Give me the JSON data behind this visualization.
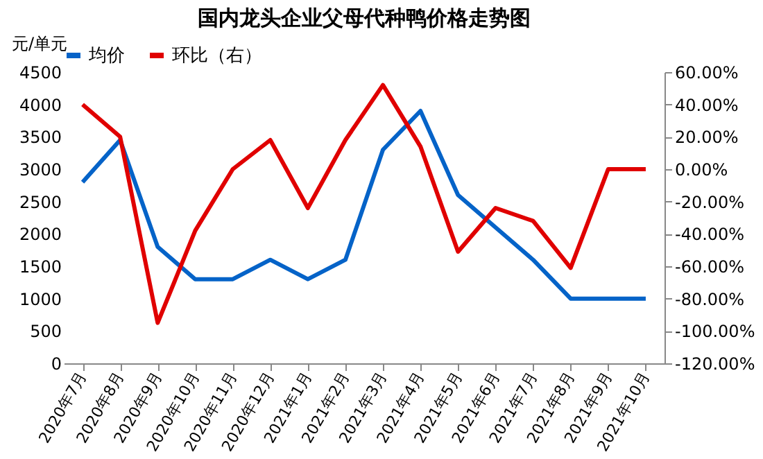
{
  "chart_data": {
    "type": "line",
    "title": "国内龙头企业父母代种鸭价格走势图",
    "ylabel": "元/单元",
    "categories": [
      "2020年7月",
      "2020年8月",
      "2020年9月",
      "2020年10月",
      "2020年11月",
      "2020年12月",
      "2021年1月",
      "2021年2月",
      "2021年3月",
      "2021年4月",
      "2021年5月",
      "2021年6月",
      "2021年7月",
      "2021年8月",
      "2021年9月",
      "2021年10月"
    ],
    "series": [
      {
        "name": "均价",
        "color": "#0563c8",
        "values": [
          2800,
          3450,
          1800,
          1300,
          1300,
          1600,
          1300,
          1600,
          3300,
          3900,
          2600,
          2100,
          1600,
          1000,
          1000,
          1000
        ]
      },
      {
        "name": "环比（右）",
        "color": "#e00000",
        "axis": "y2",
        "values": [
          40,
          20,
          -95,
          -38,
          0,
          18,
          -24,
          18,
          52,
          14,
          -51,
          -24,
          -32,
          -61,
          0,
          0
        ]
      }
    ],
    "ylim": [
      0,
      4500
    ],
    "yticks": [
      0,
      500,
      1000,
      1500,
      2000,
      2500,
      3000,
      3500,
      4000,
      4500
    ],
    "y2lim": [
      -120,
      60
    ],
    "y2ticks": [
      {
        "value": -120,
        "label": "-120.00%"
      },
      {
        "value": -100,
        "label": "-100.00%"
      },
      {
        "value": -80,
        "label": "-80.00%"
      },
      {
        "value": -60,
        "label": "-60.00%"
      },
      {
        "value": -40,
        "label": "-40.00%"
      },
      {
        "value": -20,
        "label": "-20.00%"
      },
      {
        "value": 0,
        "label": "0.00%"
      },
      {
        "value": 20,
        "label": "20.00%"
      },
      {
        "value": 40,
        "label": "40.00%"
      },
      {
        "value": 60,
        "label": "60.00%"
      }
    ],
    "grid": false,
    "legend": "top",
    "marker": "none",
    "line_style": "solid"
  }
}
